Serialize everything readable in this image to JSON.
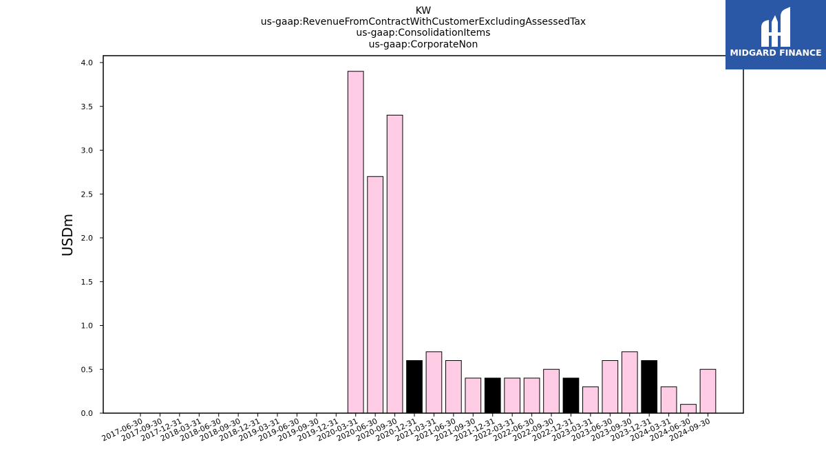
{
  "chart_data": {
    "type": "bar",
    "title_lines": [
      "KW",
      "us-gaap:RevenueFromContractWithCustomerExcludingAssessedTax",
      "us-gaap:ConsolidationItems",
      "us-gaap:CorporateNon"
    ],
    "xlabel": "",
    "ylabel": "USDm",
    "ylim": [
      0,
      4.0
    ],
    "yticks": [
      "0.0",
      "0.5",
      "1.0",
      "1.5",
      "2.0",
      "2.5",
      "3.0",
      "3.5",
      "4.0"
    ],
    "grid": false,
    "categories": [
      "2017-06-30",
      "2017-09-30",
      "2017-12-31",
      "2018-03-31",
      "2018-06-30",
      "2018-09-30",
      "2018-12-31",
      "2019-03-31",
      "2019-06-30",
      "2019-09-30",
      "2019-12-31",
      "2020-03-31",
      "2020-06-30",
      "2020-09-30",
      "2020-12-31",
      "2021-03-31",
      "2021-06-30",
      "2021-09-30",
      "2021-12-31",
      "2022-03-31",
      "2022-06-30",
      "2022-09-30",
      "2022-12-31",
      "2023-03-31",
      "2023-06-30",
      "2023-09-30",
      "2023-12-31",
      "2024-03-31",
      "2024-06-30",
      "2024-09-30"
    ],
    "values": [
      null,
      null,
      null,
      null,
      null,
      null,
      null,
      null,
      null,
      null,
      null,
      3.9,
      2.7,
      3.4,
      0.6,
      0.7,
      0.6,
      0.4,
      0.4,
      0.4,
      0.4,
      0.5,
      0.4,
      0.3,
      0.6,
      0.7,
      0.6,
      0.3,
      0.1,
      0.5
    ],
    "bar_colors": {
      "normal": "#ffcce6",
      "highlight": "#000000",
      "edge": "#000000"
    },
    "highlighted": [
      false,
      false,
      false,
      false,
      false,
      false,
      false,
      false,
      false,
      false,
      false,
      false,
      false,
      false,
      true,
      false,
      false,
      false,
      true,
      false,
      false,
      false,
      true,
      false,
      false,
      false,
      true,
      false,
      false,
      false
    ]
  },
  "logo": {
    "text": "MIDGARD FINANCE",
    "background": "#2b58a6"
  }
}
